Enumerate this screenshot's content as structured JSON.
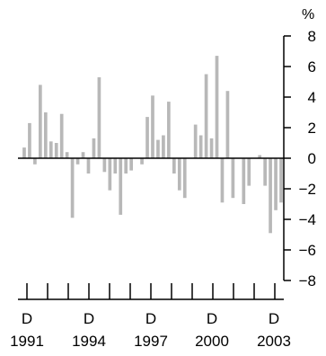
{
  "chart_data": {
    "type": "bar",
    "unit": "%",
    "ylim": [
      -8,
      8
    ],
    "y_ticks": [
      8,
      6,
      4,
      2,
      0,
      -2,
      -4,
      -6,
      -8
    ],
    "y_tick_labels": [
      "8",
      "6",
      "4",
      "2",
      "0",
      "−2",
      "−4",
      "−6",
      "−8"
    ],
    "x_labels": [
      {
        "month": "D",
        "year": "1991"
      },
      {
        "month": "D",
        "year": "1994"
      },
      {
        "month": "D",
        "year": "1997"
      },
      {
        "month": "D",
        "year": "2000"
      },
      {
        "month": "D",
        "year": "2003"
      }
    ],
    "bar_color": "#b8b8b8",
    "grid": false,
    "legend": "none",
    "series": [
      {
        "values": [
          0.7,
          2.3,
          -0.4,
          4.8,
          3.0,
          1.1,
          1.0,
          2.9,
          0.4,
          -3.9,
          -0.4,
          0.4,
          -1.0,
          1.3,
          5.3,
          -0.9,
          -2.1,
          -1.0,
          -3.7,
          -1.0,
          -0.8,
          0.0,
          -0.4,
          2.7,
          4.1,
          1.2,
          1.5,
          3.7,
          -1.0,
          -2.1,
          -2.6,
          0.0,
          2.2,
          1.5,
          5.5,
          1.3,
          6.7,
          -2.9,
          4.4,
          -2.6,
          0.0,
          -3.0,
          -1.8,
          0.0,
          0.2,
          -1.8,
          -4.9,
          -3.4,
          -2.9
        ]
      }
    ]
  }
}
